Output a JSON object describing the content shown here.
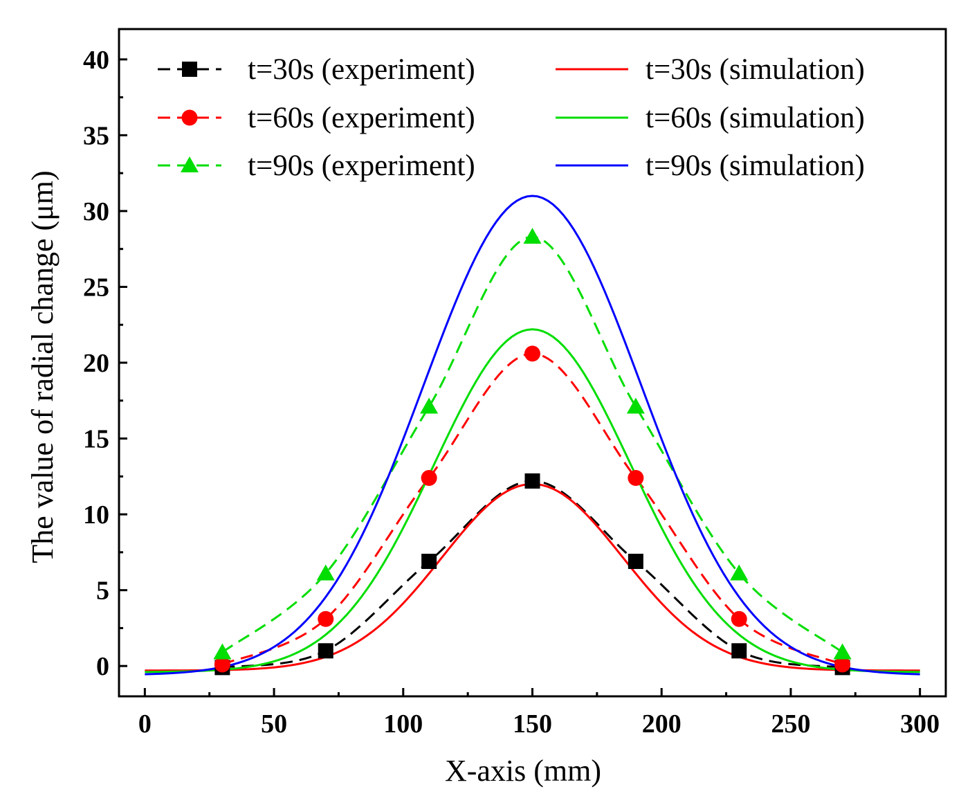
{
  "chart_data": {
    "type": "line",
    "title": "",
    "xlabel": "X-axis (mm)",
    "ylabel": "The value of radial change (μm)",
    "xlim": [
      -10,
      310
    ],
    "ylim": [
      -2,
      42
    ],
    "xticks": [
      0,
      50,
      100,
      150,
      200,
      250,
      300
    ],
    "yticks": [
      0,
      5,
      10,
      15,
      20,
      25,
      30,
      35,
      40
    ],
    "legend_position": "top",
    "experiment_x": [
      30,
      70,
      110,
      150,
      190,
      230,
      270
    ],
    "simulation_x_range": [
      0,
      300
    ],
    "series": [
      {
        "name": "t=30s (experiment)",
        "kind": "experiment",
        "color": "#000000",
        "marker": "square",
        "values": [
          -0.1,
          1.0,
          6.9,
          12.2,
          6.9,
          1.0,
          -0.1
        ]
      },
      {
        "name": "t=60s (experiment)",
        "kind": "experiment",
        "color": "#ff0000",
        "marker": "circle",
        "values": [
          0.1,
          3.1,
          12.4,
          20.6,
          12.4,
          3.1,
          0.1
        ]
      },
      {
        "name": "t=90s (experiment)",
        "kind": "experiment",
        "color": "#00dd00",
        "marker": "triangle",
        "values": [
          0.9,
          6.1,
          17.1,
          28.3,
          17.1,
          6.1,
          0.9
        ]
      },
      {
        "name": "t=30s (simulation)",
        "kind": "simulation",
        "color": "#ff0000",
        "peak": 12.0,
        "baseline": -0.3,
        "center": 150,
        "sigma": 35
      },
      {
        "name": "t=60s (simulation)",
        "kind": "simulation",
        "color": "#00dd00",
        "peak": 22.2,
        "baseline": -0.4,
        "center": 150,
        "sigma": 38
      },
      {
        "name": "t=90s (simulation)",
        "kind": "simulation",
        "color": "#0000ff",
        "peak": 31.0,
        "baseline": -0.6,
        "center": 150,
        "sigma": 42
      }
    ]
  }
}
